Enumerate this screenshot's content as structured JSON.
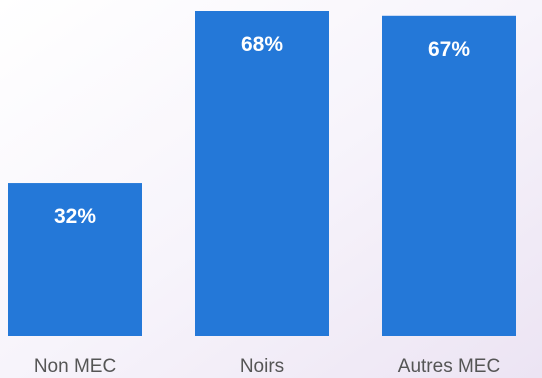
{
  "chart_data": {
    "type": "bar",
    "categories": [
      "Non MEC",
      "Noirs",
      "Autres MEC"
    ],
    "values": [
      32,
      68,
      67
    ],
    "value_labels": [
      "32%",
      "68%",
      "67%"
    ],
    "ylim": [
      0,
      68
    ],
    "grid": false,
    "bar_color": "#2478d8",
    "label_color": "#ffffff",
    "category_label_color": "#555555"
  }
}
